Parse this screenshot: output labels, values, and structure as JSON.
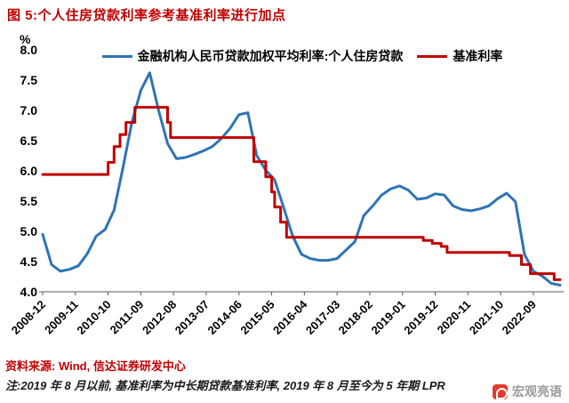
{
  "title": "图 5:个人住房贷款利率参考基准利率进行加点",
  "y_axis_unit": "%",
  "source_line": "资料来源: Wind, 信达证券研发中心",
  "note_line": "注:2019 年 8 月以前, 基准利率为中长期贷款基准利率, 2019 年 8 月至今为 5 年期 LPR",
  "watermark_text": "宏观亮语",
  "chart_data": {
    "type": "line",
    "title": "个人住房贷款利率参考基准利率进行加点",
    "ylabel": "%",
    "ylim": [
      4.0,
      8.0
    ],
    "y_ticks": [
      8.0,
      7.5,
      7.0,
      6.5,
      6.0,
      5.5,
      5.0,
      4.5,
      4.0
    ],
    "x_tick_labels": [
      "2008-12",
      "2009-11",
      "2010-10",
      "2011-09",
      "2012-08",
      "2013-07",
      "2014-06",
      "2015-05",
      "2016-04",
      "2017-03",
      "2018-02",
      "2019-01",
      "2019-12",
      "2020-11",
      "2021-10",
      "2022-09"
    ],
    "x_tick_interval_months": 11,
    "t_max": 174,
    "x_unit": "months since 2008-12",
    "grid": false,
    "legend_position": "top",
    "series": [
      {
        "key": "housing-loan-rate",
        "name": "金融机构人民币贷款加权平均利率:个人住房贷款",
        "color": "#2e74b5",
        "style": "line",
        "points": [
          [
            0,
            4.95
          ],
          [
            3,
            4.45
          ],
          [
            6,
            4.34
          ],
          [
            9,
            4.37
          ],
          [
            12,
            4.43
          ],
          [
            15,
            4.63
          ],
          [
            18,
            4.92
          ],
          [
            21,
            5.03
          ],
          [
            24,
            5.35
          ],
          [
            27,
            6.05
          ],
          [
            30,
            6.8
          ],
          [
            33,
            7.33
          ],
          [
            36,
            7.62
          ],
          [
            39,
            7.0
          ],
          [
            42,
            6.45
          ],
          [
            45,
            6.2
          ],
          [
            48,
            6.22
          ],
          [
            51,
            6.27
          ],
          [
            54,
            6.33
          ],
          [
            57,
            6.4
          ],
          [
            60,
            6.53
          ],
          [
            63,
            6.7
          ],
          [
            66,
            6.93
          ],
          [
            69,
            6.96
          ],
          [
            72,
            6.25
          ],
          [
            75,
            6.01
          ],
          [
            78,
            5.85
          ],
          [
            81,
            5.4
          ],
          [
            84,
            4.93
          ],
          [
            87,
            4.62
          ],
          [
            90,
            4.55
          ],
          [
            93,
            4.52
          ],
          [
            96,
            4.52
          ],
          [
            99,
            4.55
          ],
          [
            102,
            4.69
          ],
          [
            105,
            4.83
          ],
          [
            108,
            5.26
          ],
          [
            111,
            5.42
          ],
          [
            114,
            5.6
          ],
          [
            117,
            5.7
          ],
          [
            120,
            5.75
          ],
          [
            123,
            5.68
          ],
          [
            126,
            5.53
          ],
          [
            129,
            5.55
          ],
          [
            132,
            5.62
          ],
          [
            135,
            5.6
          ],
          [
            138,
            5.42
          ],
          [
            141,
            5.36
          ],
          [
            144,
            5.34
          ],
          [
            147,
            5.37
          ],
          [
            150,
            5.42
          ],
          [
            153,
            5.54
          ],
          [
            156,
            5.63
          ],
          [
            159,
            5.49
          ],
          [
            162,
            4.62
          ],
          [
            165,
            4.34
          ],
          [
            168,
            4.26
          ],
          [
            171,
            4.14
          ],
          [
            174,
            4.11
          ]
        ]
      },
      {
        "key": "benchmark-rate",
        "name": "基准利率",
        "color": "#c00000",
        "style": "step",
        "points": [
          [
            0,
            5.94
          ],
          [
            22,
            6.14
          ],
          [
            24,
            6.4
          ],
          [
            26,
            6.6
          ],
          [
            28,
            6.8
          ],
          [
            31,
            7.05
          ],
          [
            42,
            6.8
          ],
          [
            43,
            6.55
          ],
          [
            71,
            6.15
          ],
          [
            75,
            5.9
          ],
          [
            77,
            5.65
          ],
          [
            78,
            5.4
          ],
          [
            80,
            5.15
          ],
          [
            82,
            4.9
          ],
          [
            128,
            4.85
          ],
          [
            131,
            4.8
          ],
          [
            134,
            4.75
          ],
          [
            136,
            4.65
          ],
          [
            157,
            4.6
          ],
          [
            161,
            4.45
          ],
          [
            164,
            4.3
          ],
          [
            172,
            4.2
          ]
        ]
      }
    ]
  }
}
